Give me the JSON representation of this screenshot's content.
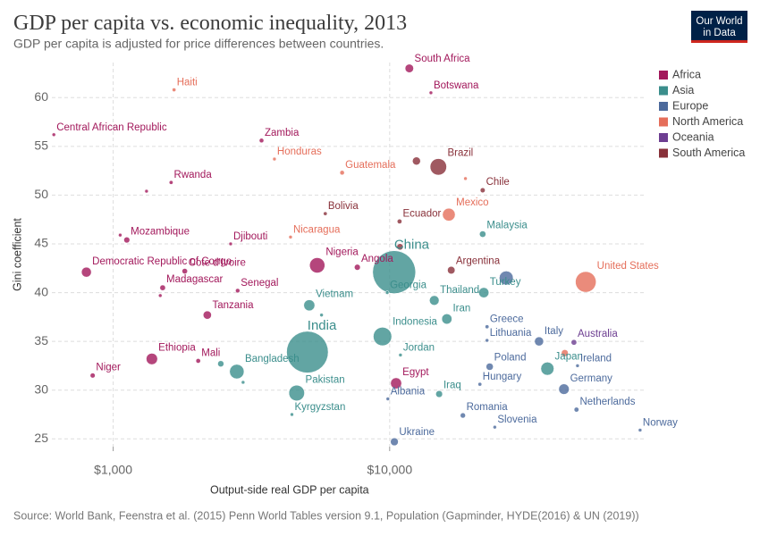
{
  "chart_data": {
    "type": "bubble",
    "title": "GDP per capita vs. economic inequality, 2013",
    "subtitle": "GDP per capita is adjusted for price differences between countries.",
    "logo": [
      "Our World",
      "in Data"
    ],
    "x_label": "Output-side real GDP per capita",
    "y_label": "Gini coefficient",
    "source": "Source: World Bank, Feenstra et al. (2015) Penn World Tables version 9.1, Population (Gapminder, HYDE(2016) & UN (2019))",
    "x_log": true,
    "grid": true,
    "legend": "right",
    "xlim": [
      600,
      83000
    ],
    "ylim": [
      24.2,
      63.6
    ],
    "xticks": [
      {
        "value": 1000,
        "label": "$1,000"
      },
      {
        "value": 10000,
        "label": "$10,000"
      }
    ],
    "yticks": [
      25,
      30,
      35,
      40,
      45,
      50,
      55,
      60
    ],
    "series": [
      {
        "name": "Africa",
        "color": "#a2185b",
        "x": [
          11780,
          14100,
          610,
          3440,
          1620,
          1120,
          2660,
          800,
          1815,
          1510,
          2820,
          5470,
          7640,
          2190,
          1380,
          2030,
          843,
          10550,
          1320,
          1480,
          1060
        ],
        "values": [
          63,
          60.5,
          56.2,
          55.6,
          51.3,
          45.4,
          45,
          42.1,
          42.2,
          40.5,
          40.2,
          42.8,
          42.6,
          37.7,
          33.2,
          33,
          31.5,
          30.7,
          50.4,
          39.7,
          45.9
        ],
        "sizes": [
          53,
          2,
          5,
          15,
          11,
          26,
          1,
          72,
          22,
          23,
          14,
          172,
          26,
          50,
          95,
          16,
          18,
          90,
          2,
          4,
          3
        ],
        "labels": [
          "South Africa",
          "Botswana",
          "Central African Republic",
          "Zambia",
          "Rwanda",
          "Mozambique",
          "Djibouti",
          "Democratic Republic of Congo",
          "Cote d'Ivoire",
          "Madagascar",
          "Senegal",
          "Nigeria",
          "Angola",
          "Tanzania",
          "Ethiopia",
          "Mali",
          "Niger",
          "Egypt",
          null,
          null,
          null
        ]
      },
      {
        "name": "Asia",
        "color": "#3b8e8c",
        "x": [
          10380,
          5040,
          21700,
          14500,
          21900,
          9800,
          5120,
          9420,
          16100,
          10940,
          2800,
          4610,
          4430,
          15100,
          37200,
          2450,
          2950,
          5670
        ],
        "values": [
          42.1,
          33.9,
          46,
          39.2,
          40,
          40,
          38.7,
          35.5,
          37.3,
          33.6,
          31.9,
          29.7,
          27.5,
          29.6,
          32.2,
          32.7,
          30.8,
          37.7
        ],
        "sizes": [
          1360,
          1280,
          30,
          68,
          76,
          4,
          90,
          250,
          77,
          7,
          155,
          180,
          6,
          34,
          127,
          28,
          2,
          3
        ],
        "labels": [
          "China",
          "India",
          "Malaysia",
          "Thailand",
          "Turkey",
          "Georgia",
          "Vietnam",
          "Indonesia",
          "Iran",
          "Jordan",
          "Bangladesh",
          "Pakistan",
          "Kyrgyzstan",
          "Iraq",
          "Japan",
          null,
          null,
          null
        ]
      },
      {
        "name": "Europe",
        "color": "#4c6a9c",
        "x": [
          10400,
          22500,
          22500,
          23000,
          21200,
          18400,
          24000,
          34700,
          47800,
          42700,
          47400,
          80500,
          9850,
          26400
        ],
        "values": [
          24.7,
          36.5,
          35.1,
          32.4,
          30.6,
          27.4,
          26.2,
          35,
          32.5,
          30.1,
          28,
          25.9,
          29.1,
          41.5
        ],
        "sizes": [
          45,
          11,
          3,
          38,
          10,
          20,
          2,
          60,
          5,
          81,
          17,
          5,
          3,
          144
        ],
        "labels": [
          "Ukraine",
          "Greece",
          "Lithuania",
          "Poland",
          "Hungary",
          "Romania",
          "Slovenia",
          "Italy",
          "Ireland",
          "Germany",
          "Netherlands",
          "Norway",
          "Albania",
          null
        ]
      },
      {
        "name": "North America",
        "color": "#e56e5a",
        "x": [
          1660,
          3830,
          6730,
          4380,
          16370,
          51200,
          18800,
          43000
        ],
        "values": [
          60.8,
          53.7,
          52.3,
          45.7,
          48,
          41.1,
          51.7,
          33.8
        ],
        "sizes": [
          10,
          8,
          15,
          6,
          120,
          316,
          5,
          35
        ],
        "labels": [
          "Haiti",
          "Honduras",
          "Guatemala",
          "Nicaragua",
          "Mexico",
          "United States",
          null,
          null
        ]
      },
      {
        "name": "Oceania",
        "color": "#6d3e91",
        "x": [
          46400
        ],
        "values": [
          34.9
        ],
        "sizes": [
          23
        ],
        "labels": [
          "Australia"
        ]
      },
      {
        "name": "South America",
        "color": "#883039",
        "x": [
          15000,
          21700,
          5850,
          10860,
          16700,
          12500,
          10900
        ],
        "values": [
          52.9,
          50.5,
          48.1,
          47.3,
          42.3,
          53.5,
          44.7
        ],
        "sizes": [
          200,
          18,
          10,
          16,
          42,
          47,
          30
        ],
        "labels": [
          "Brazil",
          "Chile",
          "Bolivia",
          "Ecuador",
          "Argentina",
          null,
          null
        ]
      }
    ]
  }
}
